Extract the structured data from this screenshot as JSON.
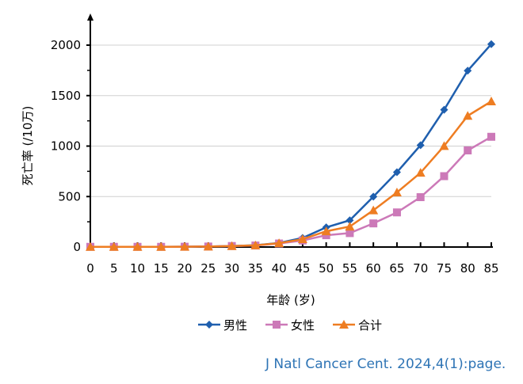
{
  "chart_data": {
    "type": "line",
    "title": "",
    "xlabel": "年龄 (岁)",
    "ylabel": "死亡率 (/10万)",
    "x": [
      0,
      5,
      10,
      15,
      20,
      25,
      30,
      35,
      40,
      45,
      50,
      55,
      60,
      65,
      70,
      75,
      80,
      85
    ],
    "xlim": [
      0,
      85
    ],
    "ylim": [
      0,
      2000
    ],
    "yticks": [
      0,
      500,
      1000,
      1500,
      2000
    ],
    "grid": true,
    "legend": "bottom",
    "series": [
      {
        "name": "男性",
        "color": "#1f5fae",
        "marker": "diamond",
        "values": [
          2,
          2,
          2,
          2,
          3,
          5,
          10,
          18,
          40,
          90,
          195,
          265,
          499,
          741,
          1009,
          1360,
          1747,
          2010
        ]
      },
      {
        "name": "女性",
        "color": "#cc79b8",
        "marker": "square",
        "values": [
          2,
          2,
          2,
          2,
          3,
          5,
          10,
          15,
          35,
          65,
          117,
          138,
          234,
          343,
          494,
          702,
          957,
          1092
        ]
      },
      {
        "name": "合计",
        "color": "#ee7d22",
        "marker": "triangle",
        "values": [
          2,
          2,
          2,
          2,
          3,
          5,
          10,
          17,
          38,
          78,
          156,
          203,
          364,
          541,
          736,
          1001,
          1300,
          1443
        ]
      }
    ]
  },
  "source": "J Natl Cancer Cent. 2024,4(1):page."
}
